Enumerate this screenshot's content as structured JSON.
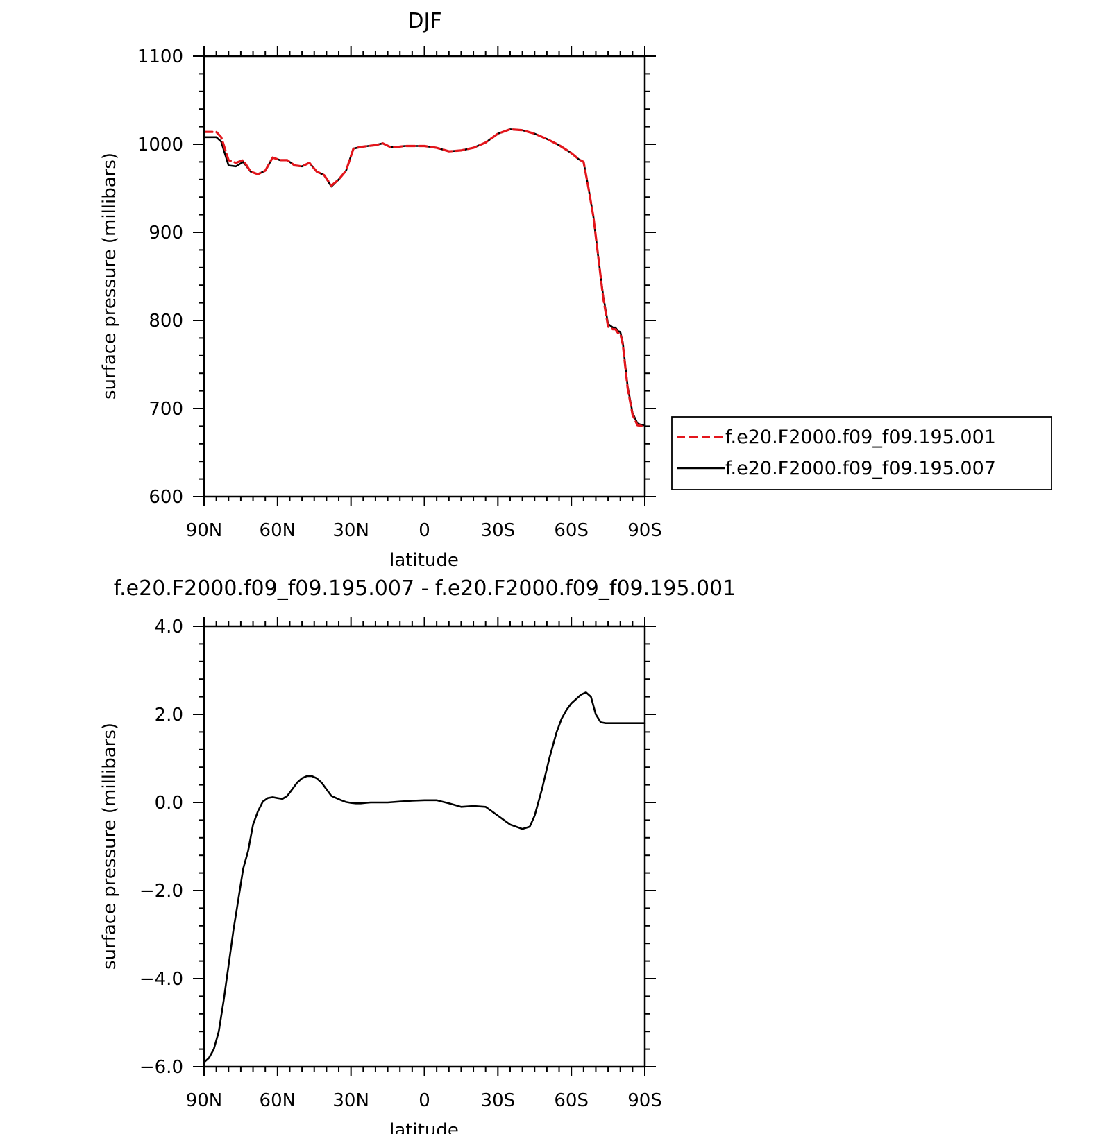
{
  "chart_data": [
    {
      "type": "line",
      "title": "DJF",
      "xlabel": "latitude",
      "ylabel": "surface pressure (millibars)",
      "xlim": [
        90,
        -90
      ],
      "ylim": [
        600,
        1100
      ],
      "xticks": [
        {
          "value": 90,
          "label": "90N"
        },
        {
          "value": 60,
          "label": "60N"
        },
        {
          "value": 30,
          "label": "30N"
        },
        {
          "value": 0,
          "label": "0"
        },
        {
          "value": -30,
          "label": "30S"
        },
        {
          "value": -60,
          "label": "60S"
        },
        {
          "value": -90,
          "label": "90S"
        }
      ],
      "yticks": [
        {
          "value": 1100,
          "label": "1100"
        },
        {
          "value": 1000,
          "label": "1000"
        },
        {
          "value": 900,
          "label": "900"
        },
        {
          "value": 800,
          "label": "800"
        },
        {
          "value": 700,
          "label": "700"
        },
        {
          "value": 600,
          "label": "600"
        }
      ],
      "legend": "right",
      "series": [
        {
          "name": "f.e20.F2000.f09_f09.195.001",
          "color": "#e3161c",
          "dash": true,
          "x": [
            90,
            85,
            83,
            80,
            77,
            74,
            71,
            68,
            65,
            62,
            59,
            56,
            53,
            50,
            47,
            44,
            41,
            38,
            35,
            32,
            29,
            26,
            23,
            20,
            17,
            14,
            11,
            8,
            5,
            2,
            0,
            -5,
            -10,
            -15,
            -20,
            -25,
            -30,
            -35,
            -40,
            -45,
            -50,
            -55,
            -60,
            -63,
            -65,
            -67,
            -69,
            -71,
            -73,
            -75,
            -77,
            -78,
            -79,
            -80,
            -81,
            -83,
            -85,
            -87,
            -89,
            -90
          ],
          "y": [
            1014,
            1014,
            1008,
            982,
            979,
            982,
            969,
            966,
            970,
            985,
            982,
            982,
            976,
            975,
            979,
            969,
            965,
            953,
            960,
            970,
            995,
            997,
            998,
            999,
            1001,
            997,
            997,
            998,
            998,
            998,
            998,
            996,
            992,
            993,
            996,
            1002,
            1012,
            1017,
            1016,
            1012,
            1006,
            999,
            990,
            983,
            980,
            950,
            918,
            872,
            826,
            793,
            790,
            790,
            786,
            785,
            773,
            723,
            693,
            681,
            680,
            680
          ]
        },
        {
          "name": "f.e20.F2000.f09_f09.195.007",
          "color": "#000000",
          "dash": false,
          "x": [
            90,
            85,
            83,
            80,
            77,
            74,
            71,
            68,
            65,
            62,
            59,
            56,
            53,
            50,
            47,
            44,
            41,
            38,
            35,
            32,
            29,
            26,
            23,
            20,
            17,
            14,
            11,
            8,
            5,
            2,
            0,
            -5,
            -10,
            -15,
            -20,
            -25,
            -30,
            -35,
            -40,
            -45,
            -50,
            -55,
            -60,
            -63,
            -65,
            -67,
            -69,
            -71,
            -73,
            -75,
            -77,
            -78,
            -79,
            -80,
            -81,
            -83,
            -85,
            -87,
            -89,
            -90
          ],
          "y": [
            1008,
            1008,
            1003,
            976,
            975,
            980,
            969,
            966,
            970,
            985,
            982,
            982,
            976,
            975,
            979,
            969,
            965,
            952,
            960,
            970,
            995,
            997,
            998,
            999,
            1001,
            997,
            997,
            998,
            998,
            998,
            998,
            996,
            992,
            993,
            996,
            1002,
            1012,
            1017,
            1016,
            1012,
            1006,
            999,
            990,
            983,
            980,
            950,
            918,
            872,
            828,
            796,
            792,
            792,
            788,
            787,
            775,
            725,
            695,
            683,
            681,
            681
          ]
        }
      ]
    },
    {
      "type": "line",
      "title": "f.e20.F2000.f09_f09.195.007 - f.e20.F2000.f09_f09.195.001",
      "xlabel": "latitude",
      "ylabel": "surface pressure (millibars)",
      "xlim": [
        90,
        -90
      ],
      "ylim": [
        -6.0,
        4.0
      ],
      "xticks": [
        {
          "value": 90,
          "label": "90N"
        },
        {
          "value": 60,
          "label": "60N"
        },
        {
          "value": 30,
          "label": "30N"
        },
        {
          "value": 0,
          "label": "0"
        },
        {
          "value": -30,
          "label": "30S"
        },
        {
          "value": -60,
          "label": "60S"
        },
        {
          "value": -90,
          "label": "90S"
        }
      ],
      "yticks": [
        {
          "value": 4.0,
          "label": "4.0"
        },
        {
          "value": 2.0,
          "label": "2.0"
        },
        {
          "value": 0.0,
          "label": "0.0"
        },
        {
          "value": -2.0,
          "label": "-2.0"
        },
        {
          "value": -4.0,
          "label": "-4.0"
        },
        {
          "value": -6.0,
          "label": "-6.0"
        }
      ],
      "series": [
        {
          "color": "#000000",
          "dash": false,
          "x": [
            90,
            88,
            86,
            84,
            82,
            80,
            78,
            76,
            74,
            72,
            70,
            68,
            66,
            64,
            62,
            60,
            58,
            56,
            54,
            52,
            50,
            48,
            46,
            44,
            42,
            40,
            38,
            36,
            34,
            32,
            30,
            28,
            26,
            24,
            22,
            20,
            15,
            10,
            5,
            0,
            -5,
            -10,
            -15,
            -20,
            -25,
            -30,
            -35,
            -40,
            -43,
            -45,
            -48,
            -51,
            -54,
            -56,
            -58,
            -60,
            -62,
            -64,
            -66,
            -68,
            -70,
            -72,
            -74,
            -76,
            -78,
            -80,
            -82,
            -84,
            -86,
            -88,
            -90
          ],
          "y": [
            -5.9,
            -5.8,
            -5.6,
            -5.2,
            -4.5,
            -3.7,
            -2.9,
            -2.2,
            -1.5,
            -1.1,
            -0.5,
            -0.2,
            0.02,
            0.1,
            0.12,
            0.1,
            0.08,
            0.15,
            0.3,
            0.45,
            0.55,
            0.6,
            0.6,
            0.55,
            0.45,
            0.3,
            0.15,
            0.1,
            0.05,
            0.01,
            -0.01,
            -0.02,
            -0.02,
            -0.01,
            0.0,
            0.0,
            0.0,
            0.02,
            0.04,
            0.05,
            0.05,
            -0.02,
            -0.1,
            -0.08,
            -0.1,
            -0.3,
            -0.5,
            -0.6,
            -0.55,
            -0.3,
            0.3,
            1.0,
            1.6,
            1.9,
            2.1,
            2.25,
            2.35,
            2.45,
            2.5,
            2.4,
            2.0,
            1.82,
            1.8,
            1.8,
            1.8,
            1.8,
            1.8,
            1.8,
            1.8,
            1.8,
            1.8
          ]
        }
      ]
    }
  ]
}
